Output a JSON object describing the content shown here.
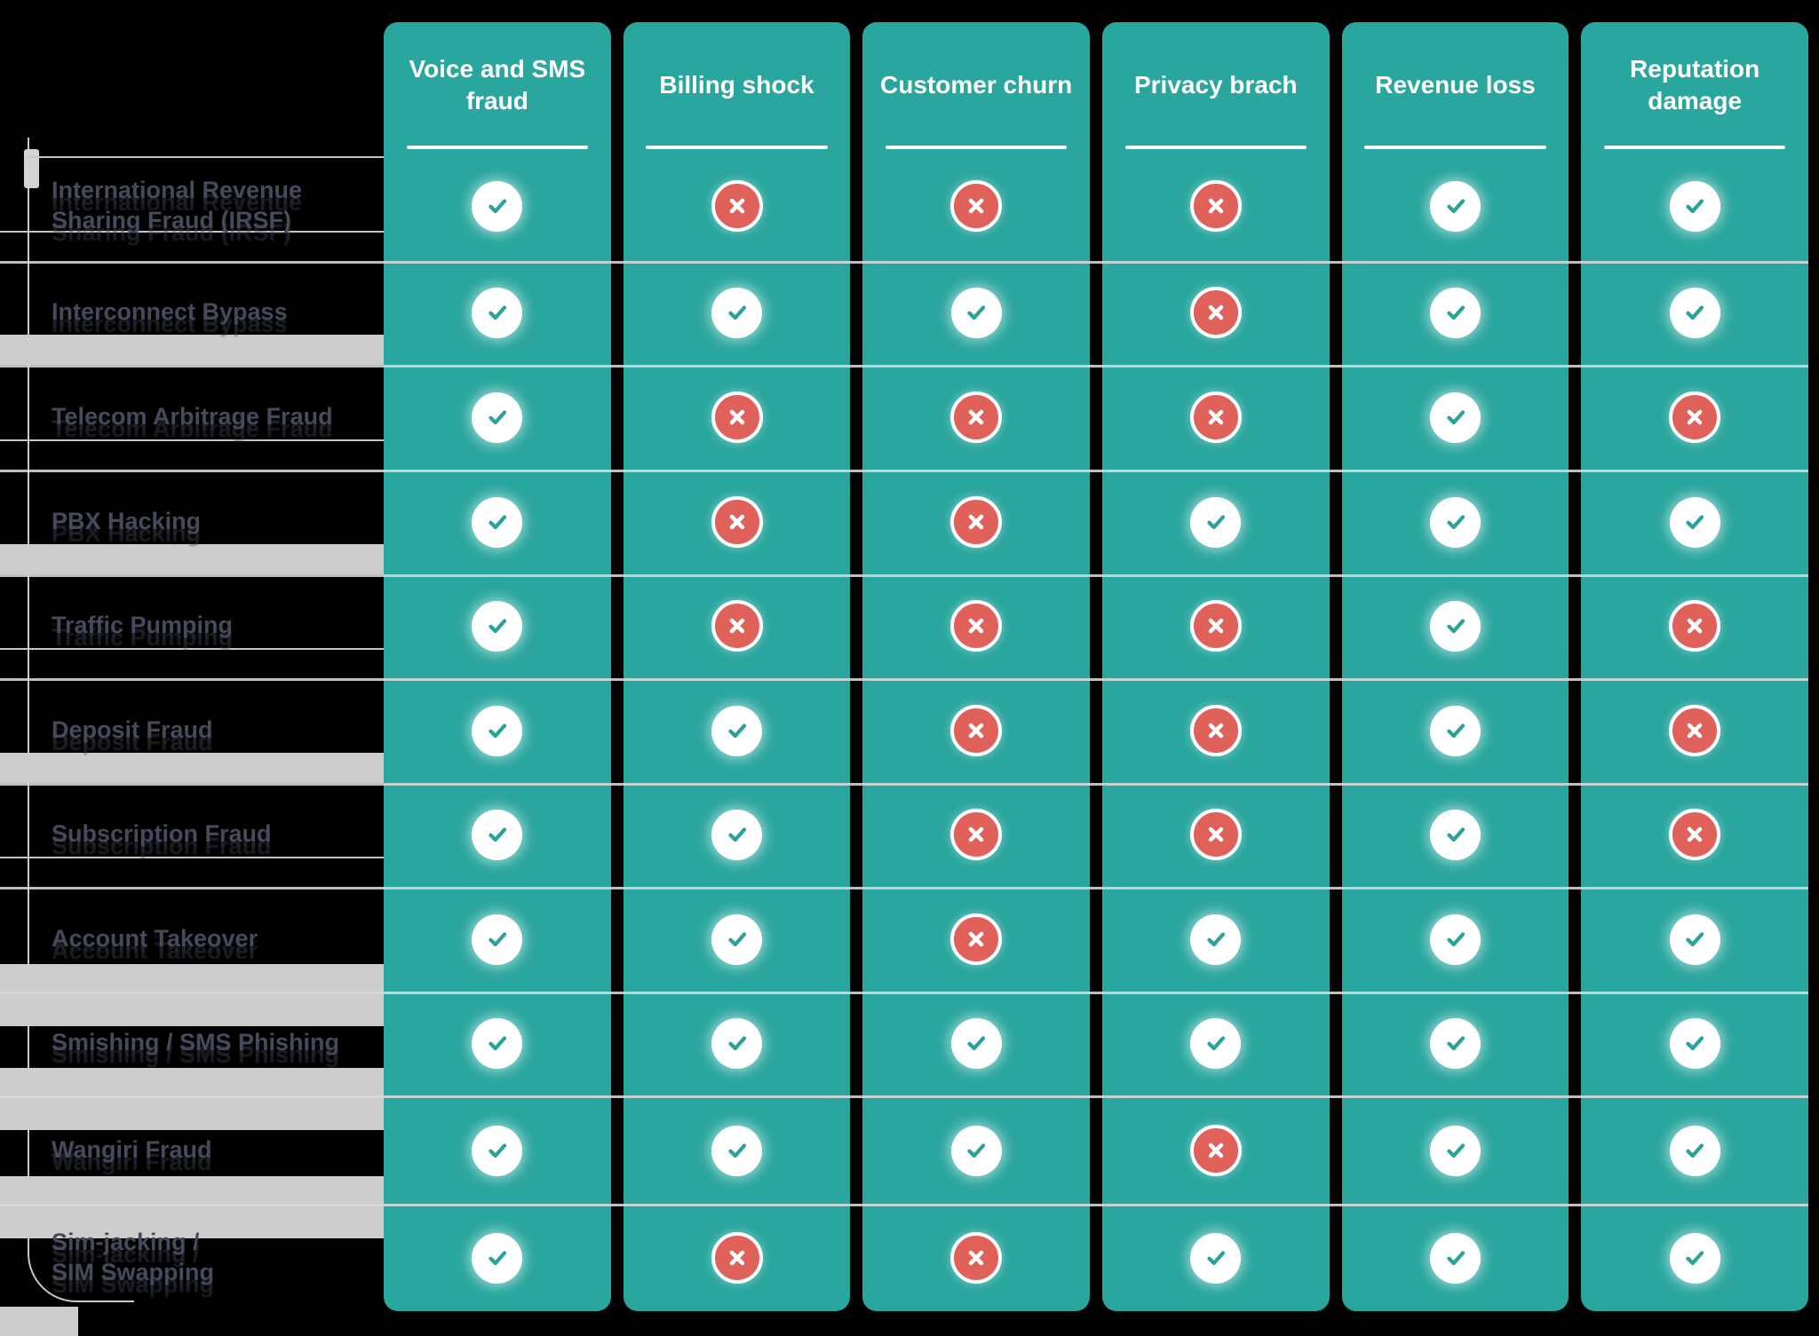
{
  "chart_data": {
    "type": "table",
    "title": "",
    "columns": [
      "Voice and SMS fraud",
      "Billing shock",
      "Customer churn",
      "Privacy brach",
      "Revenue loss",
      "Reputation damage"
    ],
    "rows": [
      {
        "label": "International Revenue Sharing Fraud (IRSF)",
        "values": [
          "yes",
          "no",
          "no",
          "no",
          "yes",
          "yes"
        ]
      },
      {
        "label": "Interconnect Bypass",
        "values": [
          "yes",
          "yes",
          "yes",
          "no",
          "yes",
          "yes"
        ]
      },
      {
        "label": "Telecom Arbitrage Fraud",
        "values": [
          "yes",
          "no",
          "no",
          "no",
          "yes",
          "no"
        ]
      },
      {
        "label": "PBX Hacking",
        "values": [
          "yes",
          "no",
          "no",
          "yes",
          "yes",
          "yes"
        ]
      },
      {
        "label": "Traffic Pumping",
        "values": [
          "yes",
          "no",
          "no",
          "no",
          "yes",
          "no"
        ]
      },
      {
        "label": "Deposit Fraud",
        "values": [
          "yes",
          "yes",
          "no",
          "no",
          "yes",
          "no"
        ]
      },
      {
        "label": "Subscription Fraud",
        "values": [
          "yes",
          "yes",
          "no",
          "no",
          "yes",
          "no"
        ]
      },
      {
        "label": "Account Takeover",
        "values": [
          "yes",
          "yes",
          "no",
          "yes",
          "yes",
          "yes"
        ]
      },
      {
        "label": "Smishing / SMS Phishing",
        "values": [
          "yes",
          "yes",
          "yes",
          "yes",
          "yes",
          "yes"
        ]
      },
      {
        "label": "Wangiri Fraud",
        "values": [
          "yes",
          "yes",
          "yes",
          "no",
          "yes",
          "yes"
        ]
      },
      {
        "label": "Sim-jacking /\nSIM Swapping",
        "values": [
          "yes",
          "no",
          "no",
          "yes",
          "yes",
          "yes"
        ]
      }
    ],
    "legend": {
      "yes": "check",
      "no": "cross"
    },
    "layout_hints": {
      "grid": "row separators on",
      "header_position": "top"
    }
  },
  "icons": {
    "yes": "check-icon",
    "no": "cross-icon"
  },
  "colors": {
    "column_teal": "#29A69E",
    "cross_coral": "#E0605A",
    "check_glyph": "#2AA29A",
    "header_text": "#FFFFFF",
    "row_label_text": "#474A5A",
    "separator_gray": "#DADADA",
    "gutter_gray": "#CDCDCD",
    "background": "#000000"
  }
}
